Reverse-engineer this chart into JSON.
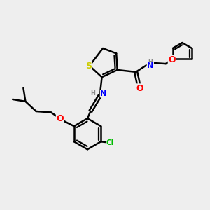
{
  "background_color": "#eeeeee",
  "atom_colors": {
    "S": "#cccc00",
    "N": "#0000ff",
    "O": "#ff0000",
    "Cl": "#00bb00",
    "H": "#888888",
    "C": "#000000"
  },
  "bond_color": "#000000",
  "bond_width": 1.8,
  "figsize": [
    3.0,
    3.0
  ],
  "dpi": 100
}
